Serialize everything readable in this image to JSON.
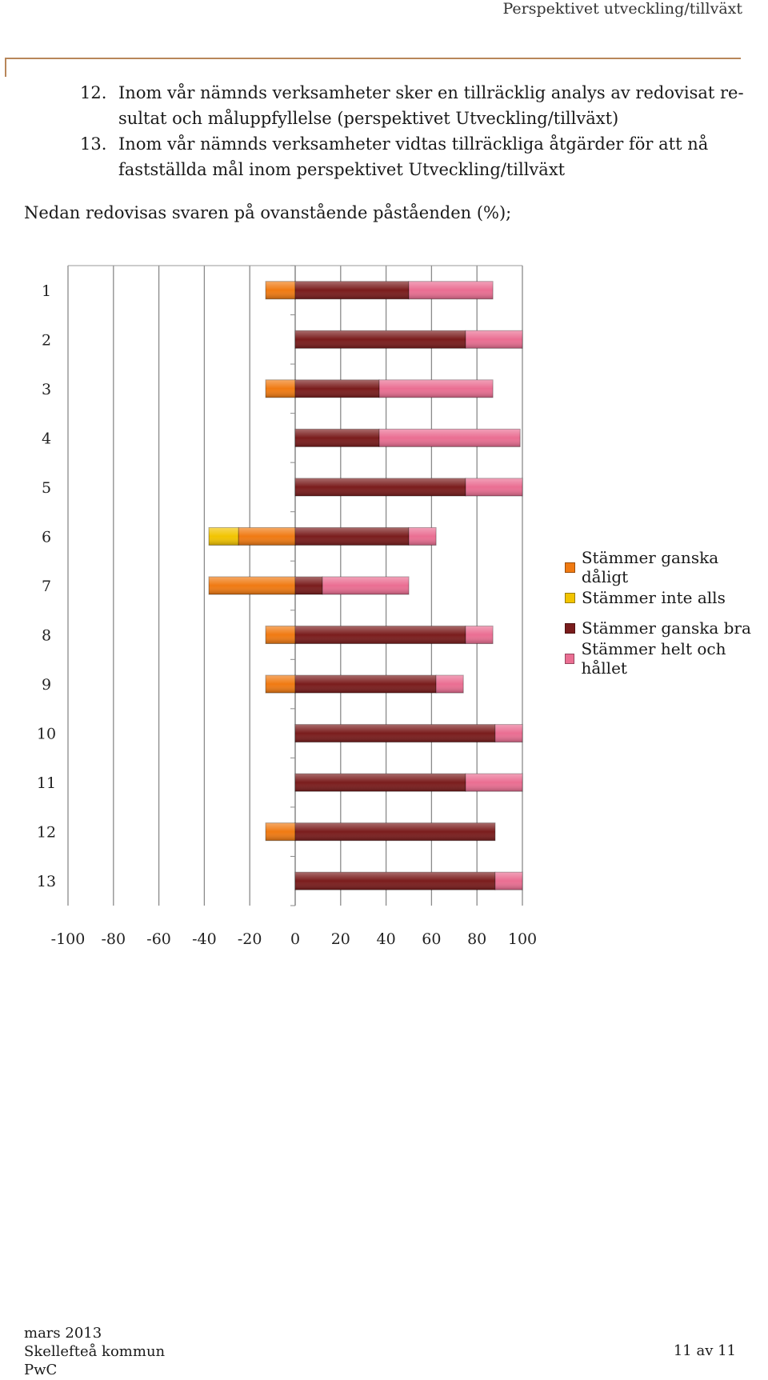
{
  "header": {
    "title": "Perspektivet utveckling/tillväxt"
  },
  "items": [
    {
      "num": "12.",
      "text": "Inom vår nämnds verksamheter sker en tillräcklig analys av redovisat re-sultat och måluppfyllelse (perspektivet Utveckling/tillväxt)"
    },
    {
      "num": "13.",
      "text": "Inom vår nämnds verksamheter vidtas tillräckliga åtgärder för att nå fastställda mål inom perspektivet Utveckling/tillväxt"
    }
  ],
  "intro": "Nedan redovisas svaren på ovanstående påståenden (%);",
  "colors": {
    "stammer_ganska_daligt": "#f07a12",
    "stammer_inte_alls": "#f2c400",
    "stammer_ganska_bra": "#7a1c1c",
    "stammer_helt_och_hallet": "#ea6e92"
  },
  "chart_data": {
    "type": "bar",
    "orientation": "horizontal",
    "stacked": true,
    "diverging": true,
    "categories": [
      "1",
      "2",
      "3",
      "4",
      "5",
      "6",
      "7",
      "8",
      "9",
      "10",
      "11",
      "12",
      "13"
    ],
    "series": [
      {
        "name": "Stämmer ganska dåligt",
        "color": "#f07a12",
        "values": [
          -13,
          0,
          -13,
          0,
          0,
          -25,
          -38,
          -13,
          -13,
          0,
          0,
          -13,
          0
        ]
      },
      {
        "name": "Stämmer inte alls",
        "color": "#f2c400",
        "values": [
          0,
          0,
          0,
          0,
          0,
          -13,
          0,
          0,
          0,
          0,
          0,
          0,
          0
        ]
      },
      {
        "name": "Stämmer ganska bra",
        "color": "#7a1c1c",
        "values": [
          50,
          75,
          37,
          37,
          75,
          50,
          12,
          75,
          62,
          88,
          75,
          88,
          88
        ]
      },
      {
        "name": "Stämmer helt och hållet",
        "color": "#ea6e92",
        "values": [
          37,
          25,
          50,
          62,
          25,
          12,
          38,
          12,
          12,
          12,
          25,
          0,
          12
        ]
      }
    ],
    "xlim": [
      -100,
      100
    ],
    "xticks": [
      "-100",
      "-80",
      "-60",
      "-40",
      "-20",
      "0",
      "20",
      "40",
      "60",
      "80",
      "100"
    ],
    "grid": true,
    "legend_position": "right"
  },
  "footer": {
    "date": "mars 2013",
    "org": "Skellefteå kommun",
    "company": "PwC",
    "page": "11 av 11"
  }
}
